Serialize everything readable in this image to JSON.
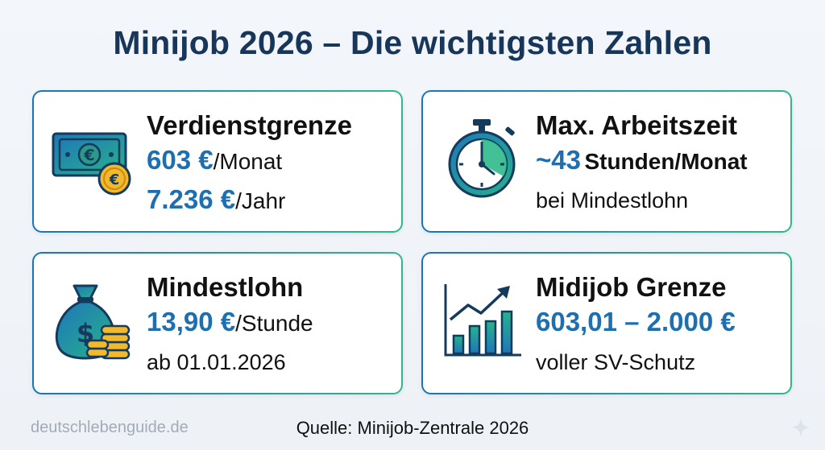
{
  "title": "Minijob 2026 – Die wichtigsten Zahlen",
  "cards": {
    "verdienst": {
      "icon": "money-banknote-coin-icon",
      "title": "Verdienstgrenze",
      "line1_value": "603 €",
      "line1_unit": "/Monat",
      "line2_value": "7.236 €",
      "line2_unit": "/Jahr"
    },
    "arbeitszeit": {
      "icon": "stopwatch-icon",
      "title": "Max. Arbeitszeit",
      "line1_value": "~43",
      "line1_unit": "Stunden/Monat",
      "line2": "bei Mindestlohn"
    },
    "mindestlohn": {
      "icon": "money-bag-coins-icon",
      "title": "Mindestlohn",
      "line1_value": "13,90 €",
      "line1_unit": "/Stunde",
      "line2": "ab 01.01.2026"
    },
    "midijob": {
      "icon": "growth-chart-icon",
      "title": "Midijob Grenze",
      "line1_value": "603,01 – 2.000 €",
      "line2": "voller SV-Schutz"
    }
  },
  "watermark": "deutschlebenguide.de",
  "source": "Quelle: Minijob-Zentrale 2026",
  "colors": {
    "title": "#18365a",
    "accent_blue": "#1d6fb0",
    "accent_green": "#2fb98a",
    "border_gradient_start": "#1a75b8",
    "border_gradient_end": "#2fb98a"
  }
}
